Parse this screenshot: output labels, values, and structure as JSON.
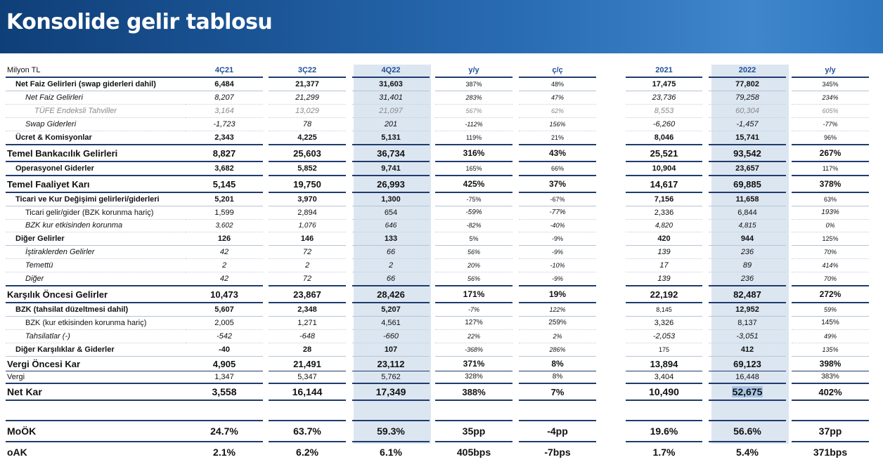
{
  "title": "Konsolide gelir tablosu",
  "unit_label": "Milyon TL",
  "columns": [
    "4Ç21",
    "3Ç22",
    "4Q22",
    "y/y",
    "ç/ç",
    "2021",
    "2022",
    "y/y"
  ],
  "rows": [
    {
      "label": "Net Faiz Gelirleri (swap giderleri dahil)",
      "values": [
        "6,484",
        "21,377",
        "31,603",
        "387%",
        "48%",
        "17,475",
        "77,802",
        "345%"
      ]
    },
    {
      "label": "Net Faiz Gelirleri",
      "values": [
        "8,207",
        "21,299",
        "31,401",
        "283%",
        "47%",
        "23,736",
        "79,258",
        "234%"
      ]
    },
    {
      "label": "TÜFE Endeksli Tahviller",
      "values": [
        "3,164",
        "13,029",
        "21,097",
        "567%",
        "62%",
        "8,553",
        "60,304",
        "605%"
      ]
    },
    {
      "label": "Swap Giderleri",
      "values": [
        "-1,723",
        "78",
        "201",
        "-112%",
        "156%",
        "-6,260",
        "-1,457",
        "-77%"
      ]
    },
    {
      "label": "Ücret & Komisyonlar",
      "values": [
        "2,343",
        "4,225",
        "5,131",
        "119%",
        "21%",
        "8,046",
        "15,741",
        "96%"
      ]
    },
    {
      "label": "Temel Bankacılık Gelirleri",
      "values": [
        "8,827",
        "25,603",
        "36,734",
        "316%",
        "43%",
        "25,521",
        "93,542",
        "267%"
      ]
    },
    {
      "label": "Operasyonel Giderler",
      "values": [
        "3,682",
        "5,852",
        "9,741",
        "165%",
        "66%",
        "10,904",
        "23,657",
        "117%"
      ]
    },
    {
      "label": "Temel Faaliyet Karı",
      "values": [
        "5,145",
        "19,750",
        "26,993",
        "425%",
        "37%",
        "14,617",
        "69,885",
        "378%"
      ]
    },
    {
      "label": "Ticari ve Kur Değişimi gelirleri/giderleri",
      "values": [
        "5,201",
        "3,970",
        "1,300",
        "-75%",
        "-67%",
        "7,156",
        "11,658",
        "63%"
      ]
    },
    {
      "label": "Ticari gelir/gider (BZK korunma hariç)",
      "values": [
        "1,599",
        "2,894",
        "654",
        "-59%",
        "-77%",
        "2,336",
        "6,844",
        "193%"
      ]
    },
    {
      "label": "BZK kur etkisinden korunma",
      "values": [
        "3,602",
        "1,076",
        "646",
        "-82%",
        "-40%",
        "4,820",
        "4,815",
        "0%"
      ]
    },
    {
      "label": "Diğer Gelirler",
      "values": [
        "126",
        "146",
        "133",
        "5%",
        "-9%",
        "420",
        "944",
        "125%"
      ]
    },
    {
      "label": "İştiraklerden Gelirler",
      "values": [
        "42",
        "72",
        "66",
        "56%",
        "-9%",
        "139",
        "236",
        "70%"
      ]
    },
    {
      "label": "Temettü",
      "values": [
        "2",
        "2",
        "2",
        "20%",
        "-10%",
        "17",
        "89",
        "414%"
      ]
    },
    {
      "label": "Diğer",
      "values": [
        "42",
        "72",
        "66",
        "56%",
        "-9%",
        "139",
        "236",
        "70%"
      ]
    },
    {
      "label": "Karşılık Öncesi Gelirler",
      "values": [
        "10,473",
        "23,867",
        "28,426",
        "171%",
        "19%",
        "22,192",
        "82,487",
        "272%"
      ]
    },
    {
      "label": "BZK (tahsilat düzeltmesi dahil)",
      "values": [
        "5,607",
        "2,348",
        "5,207",
        "-7%",
        "122%",
        "8,145",
        "12,952",
        "59%"
      ]
    },
    {
      "label": "BZK (kur etkisinden korunma hariç)",
      "values": [
        "2,005",
        "1,271",
        "4,561",
        "127%",
        "259%",
        "3,326",
        "8,137",
        "145%"
      ]
    },
    {
      "label": "Tahsilatlar (-)",
      "values": [
        "-542",
        "-648",
        "-660",
        "22%",
        "2%",
        "-2,053",
        "-3,051",
        "49%"
      ]
    },
    {
      "label": "Diğer Karşılıklar & Giderler",
      "values": [
        "-40",
        "28",
        "107",
        "-368%",
        "286%",
        "175",
        "412",
        "135%"
      ]
    },
    {
      "label": "Vergi Öncesi Kar",
      "values": [
        "4,905",
        "21,491",
        "23,112",
        "371%",
        "8%",
        "13,894",
        "69,123",
        "398%"
      ]
    },
    {
      "label": "Vergi",
      "values": [
        "1,347",
        "5,347",
        "5,762",
        "328%",
        "8%",
        "3,404",
        "16,448",
        "383%"
      ]
    },
    {
      "label": "Net Kar",
      "values": [
        "3,558",
        "16,144",
        "17,349",
        "388%",
        "7%",
        "10,490",
        "52,675",
        "402%"
      ]
    }
  ],
  "ratios": [
    {
      "label": "MoÖK",
      "values": [
        "24.7%",
        "63.7%",
        "59.3%",
        "35pp",
        "-4pp",
        "19.6%",
        "56.6%",
        "37pp"
      ]
    },
    {
      "label": "oAK",
      "values": [
        "2.1%",
        "6.2%",
        "6.1%",
        "405bps",
        "-7bps",
        "1.7%",
        "5.4%",
        "371bps"
      ]
    }
  ],
  "colors": {
    "header_bg": "#1b5596",
    "highlight_col": "#dce6f1",
    "header_text": "#1f4e96",
    "rule": "#1f3b6e"
  }
}
